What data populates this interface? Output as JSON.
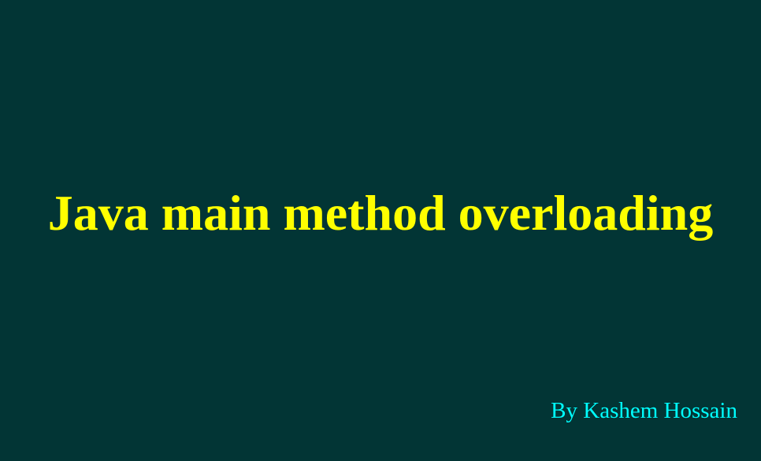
{
  "slide": {
    "title": "Java main method overloading",
    "author": "By Kashem Hossain"
  },
  "colors": {
    "background": "#023535",
    "title": "#ffff00",
    "author": "#00ffff"
  }
}
